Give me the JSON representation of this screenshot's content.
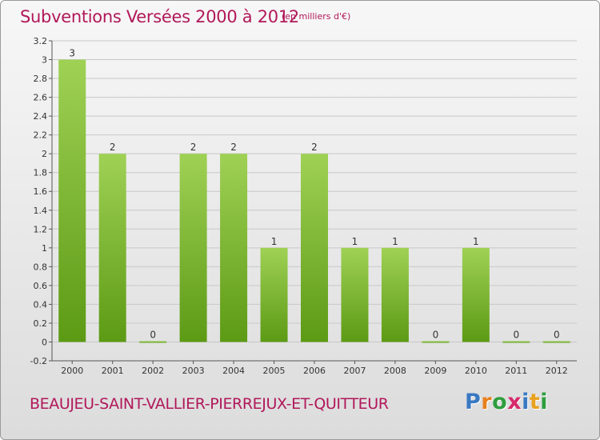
{
  "header": {
    "title": "Subventions Versées 2000 à 2012",
    "unit_note": "(en milliers d'€)"
  },
  "footer": {
    "commune": "BEAUJEU-SAINT-VALLIER-PIERREJUX-ET-QUITTEUR",
    "logo_letters": [
      {
        "ch": "P",
        "color": "#3a78c2"
      },
      {
        "ch": "r",
        "color": "#e8801f"
      },
      {
        "ch": "o",
        "color": "#2e9e3e"
      },
      {
        "ch": "x",
        "color": "#d62a6b"
      },
      {
        "ch": "i",
        "color": "#3a78c2"
      },
      {
        "ch": "t",
        "color": "#e8a21f"
      },
      {
        "ch": "i",
        "color": "#2e9e3e"
      }
    ]
  },
  "colors": {
    "title": "#b1185a",
    "bar_top": "#9fd155",
    "bar_bottom": "#5c9a14",
    "grid": "#c8c8c8"
  },
  "chart_data": {
    "type": "bar",
    "title": "Subventions Versées 2000 à 2012",
    "subtitle": "(en milliers d'€)",
    "categories": [
      "2000",
      "2001",
      "2002",
      "2003",
      "2004",
      "2005",
      "2006",
      "2007",
      "2008",
      "2009",
      "2010",
      "2011",
      "2012"
    ],
    "values": [
      3,
      2,
      0,
      2,
      2,
      1,
      2,
      1,
      1,
      0,
      1,
      0,
      0
    ],
    "data_labels": [
      "3",
      "2",
      "0",
      "2",
      "2",
      "1",
      "2",
      "1",
      "1",
      "0",
      "1",
      "0",
      "0"
    ],
    "ylim": [
      -0.2,
      3.2
    ],
    "yticks": [
      -0.2,
      0,
      0.2,
      0.4,
      0.6,
      0.8,
      1,
      1.2,
      1.4,
      1.6,
      1.8,
      2,
      2.2,
      2.4,
      2.6,
      2.8,
      3,
      3.2
    ],
    "ytick_labels": [
      "-0.2",
      "0",
      "0.2",
      "0.4",
      "0.6",
      "0.8",
      "1",
      "1.2",
      "1.4",
      "1.6",
      "1.8",
      "2",
      "2.2",
      "2.4",
      "2.6",
      "2.8",
      "3",
      "3.2"
    ],
    "grid": true,
    "xlabel": "",
    "ylabel": ""
  }
}
